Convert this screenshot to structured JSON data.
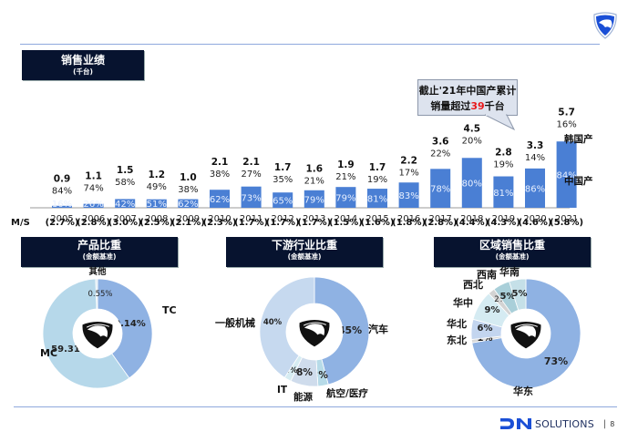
{
  "header": {
    "sales_title": "销售业绩",
    "sales_unit": "(千台)"
  },
  "callout": {
    "line1": "截止'21年中国产累计",
    "line2_prefix": "销量超过",
    "line2_highlight": "39",
    "line2_suffix": "千台"
  },
  "colors": {
    "navy": "#07132f",
    "bar_blue": "#4a7fd4",
    "light_blue": "#b6d8ea",
    "mid_blue": "#8fb2e3",
    "highlight_red": "#e8191b",
    "brand_blue": "#1a4fd6"
  },
  "chart_data": [
    {
      "type": "bar",
      "title": "销售业绩 (千台)",
      "categories": [
        "2005",
        "2006",
        "2007",
        "2008",
        "2009",
        "2010",
        "2011",
        "2012",
        "2013",
        "2014",
        "2015",
        "2016",
        "2017",
        "2018",
        "2019",
        "2020",
        "2021"
      ],
      "totals": [
        0.9,
        1.1,
        1.5,
        1.2,
        1.0,
        2.1,
        2.1,
        1.7,
        1.6,
        1.9,
        1.7,
        2.2,
        3.6,
        4.5,
        2.8,
        3.3,
        5.7
      ],
      "series": [
        {
          "name": "中国产",
          "share_labels": [
            "16%",
            "26%",
            "42%",
            "51%",
            "62%",
            "62%",
            "73%",
            "65%",
            "79%",
            "79%",
            "81%",
            "83%",
            "78%",
            "80%",
            "81%",
            "86%",
            "84%"
          ]
        },
        {
          "name": "韩国产",
          "share_labels": [
            "84%",
            "74%",
            "58%",
            "49%",
            "38%",
            "38%",
            "27%",
            "35%",
            "21%",
            "21%",
            "19%",
            "17%",
            "22%",
            "20%",
            "19%",
            "14%",
            "16%"
          ]
        }
      ],
      "legend": [
        "韩国产",
        "中国产"
      ],
      "legend_position": "right",
      "ms_label": "M/S",
      "ms_values": [
        "(2.7%)",
        "(2.8%)",
        "(3.0%)",
        "(2.5%)",
        "(2.1%)",
        "(2.3%)",
        "(1.7%)",
        "(1.7%)",
        "(1.7%)",
        "(1.5%)",
        "(1.6%)",
        "(1.8%)",
        "(2.8%)",
        "(4.4%)",
        "(4.3%)",
        "(4.6%)",
        "(5.8%)"
      ]
    },
    {
      "type": "pie",
      "title": "产品比重",
      "subtitle": "(金额基准)",
      "slices": [
        {
          "name": "TC",
          "value": 40.14,
          "label": "40.14%",
          "color": "#8fb2e3"
        },
        {
          "name": "MC",
          "value": 59.31,
          "label": "59.31%",
          "color": "#b6d8ea"
        },
        {
          "name": "其他",
          "value": 0.55,
          "label": "0.55%",
          "color": "#d9e8f2"
        }
      ]
    },
    {
      "type": "pie",
      "title": "下游行业比重",
      "subtitle": "(金额基准)",
      "slices": [
        {
          "name": "汽车",
          "value": 45,
          "label": "45%",
          "color": "#8fb2e3"
        },
        {
          "name": "航空/医疗",
          "value": 3,
          "label": "3%",
          "color": "#b7dbe8"
        },
        {
          "name": "能源",
          "value": 8,
          "label": "8%",
          "color": "#cfdcec"
        },
        {
          "name": "IT",
          "value": 2,
          "label": "2%",
          "color": "#d6ecf2"
        },
        {
          "name": "一般机械",
          "value": 40,
          "label": "40%",
          "color": "#c6d9ef"
        }
      ]
    },
    {
      "type": "pie",
      "title": "区域销售比重",
      "subtitle": "(金额基准)",
      "slices": [
        {
          "name": "华东",
          "value": 73,
          "label": "73%",
          "color": "#8fb2e3"
        },
        {
          "name": "东北",
          "value": 1,
          "label": "1%",
          "color": "#d9d9d9"
        },
        {
          "name": "华北",
          "value": 6,
          "label": "6%",
          "color": "#c3d5ef"
        },
        {
          "name": "华中",
          "value": 9,
          "label": "9%",
          "color": "#d5ebf2"
        },
        {
          "name": "西北",
          "value": 2,
          "label": "2%",
          "color": "#d3d3d3"
        },
        {
          "name": "西南",
          "value": 5,
          "label": "5%",
          "color": "#a9cfd9"
        },
        {
          "name": "华南",
          "value": 5,
          "label": "5%",
          "color": "#c5e0e8"
        }
      ]
    }
  ],
  "footer": {
    "brand": "SOLUTIONS",
    "separator": "|",
    "page_number": "8"
  }
}
